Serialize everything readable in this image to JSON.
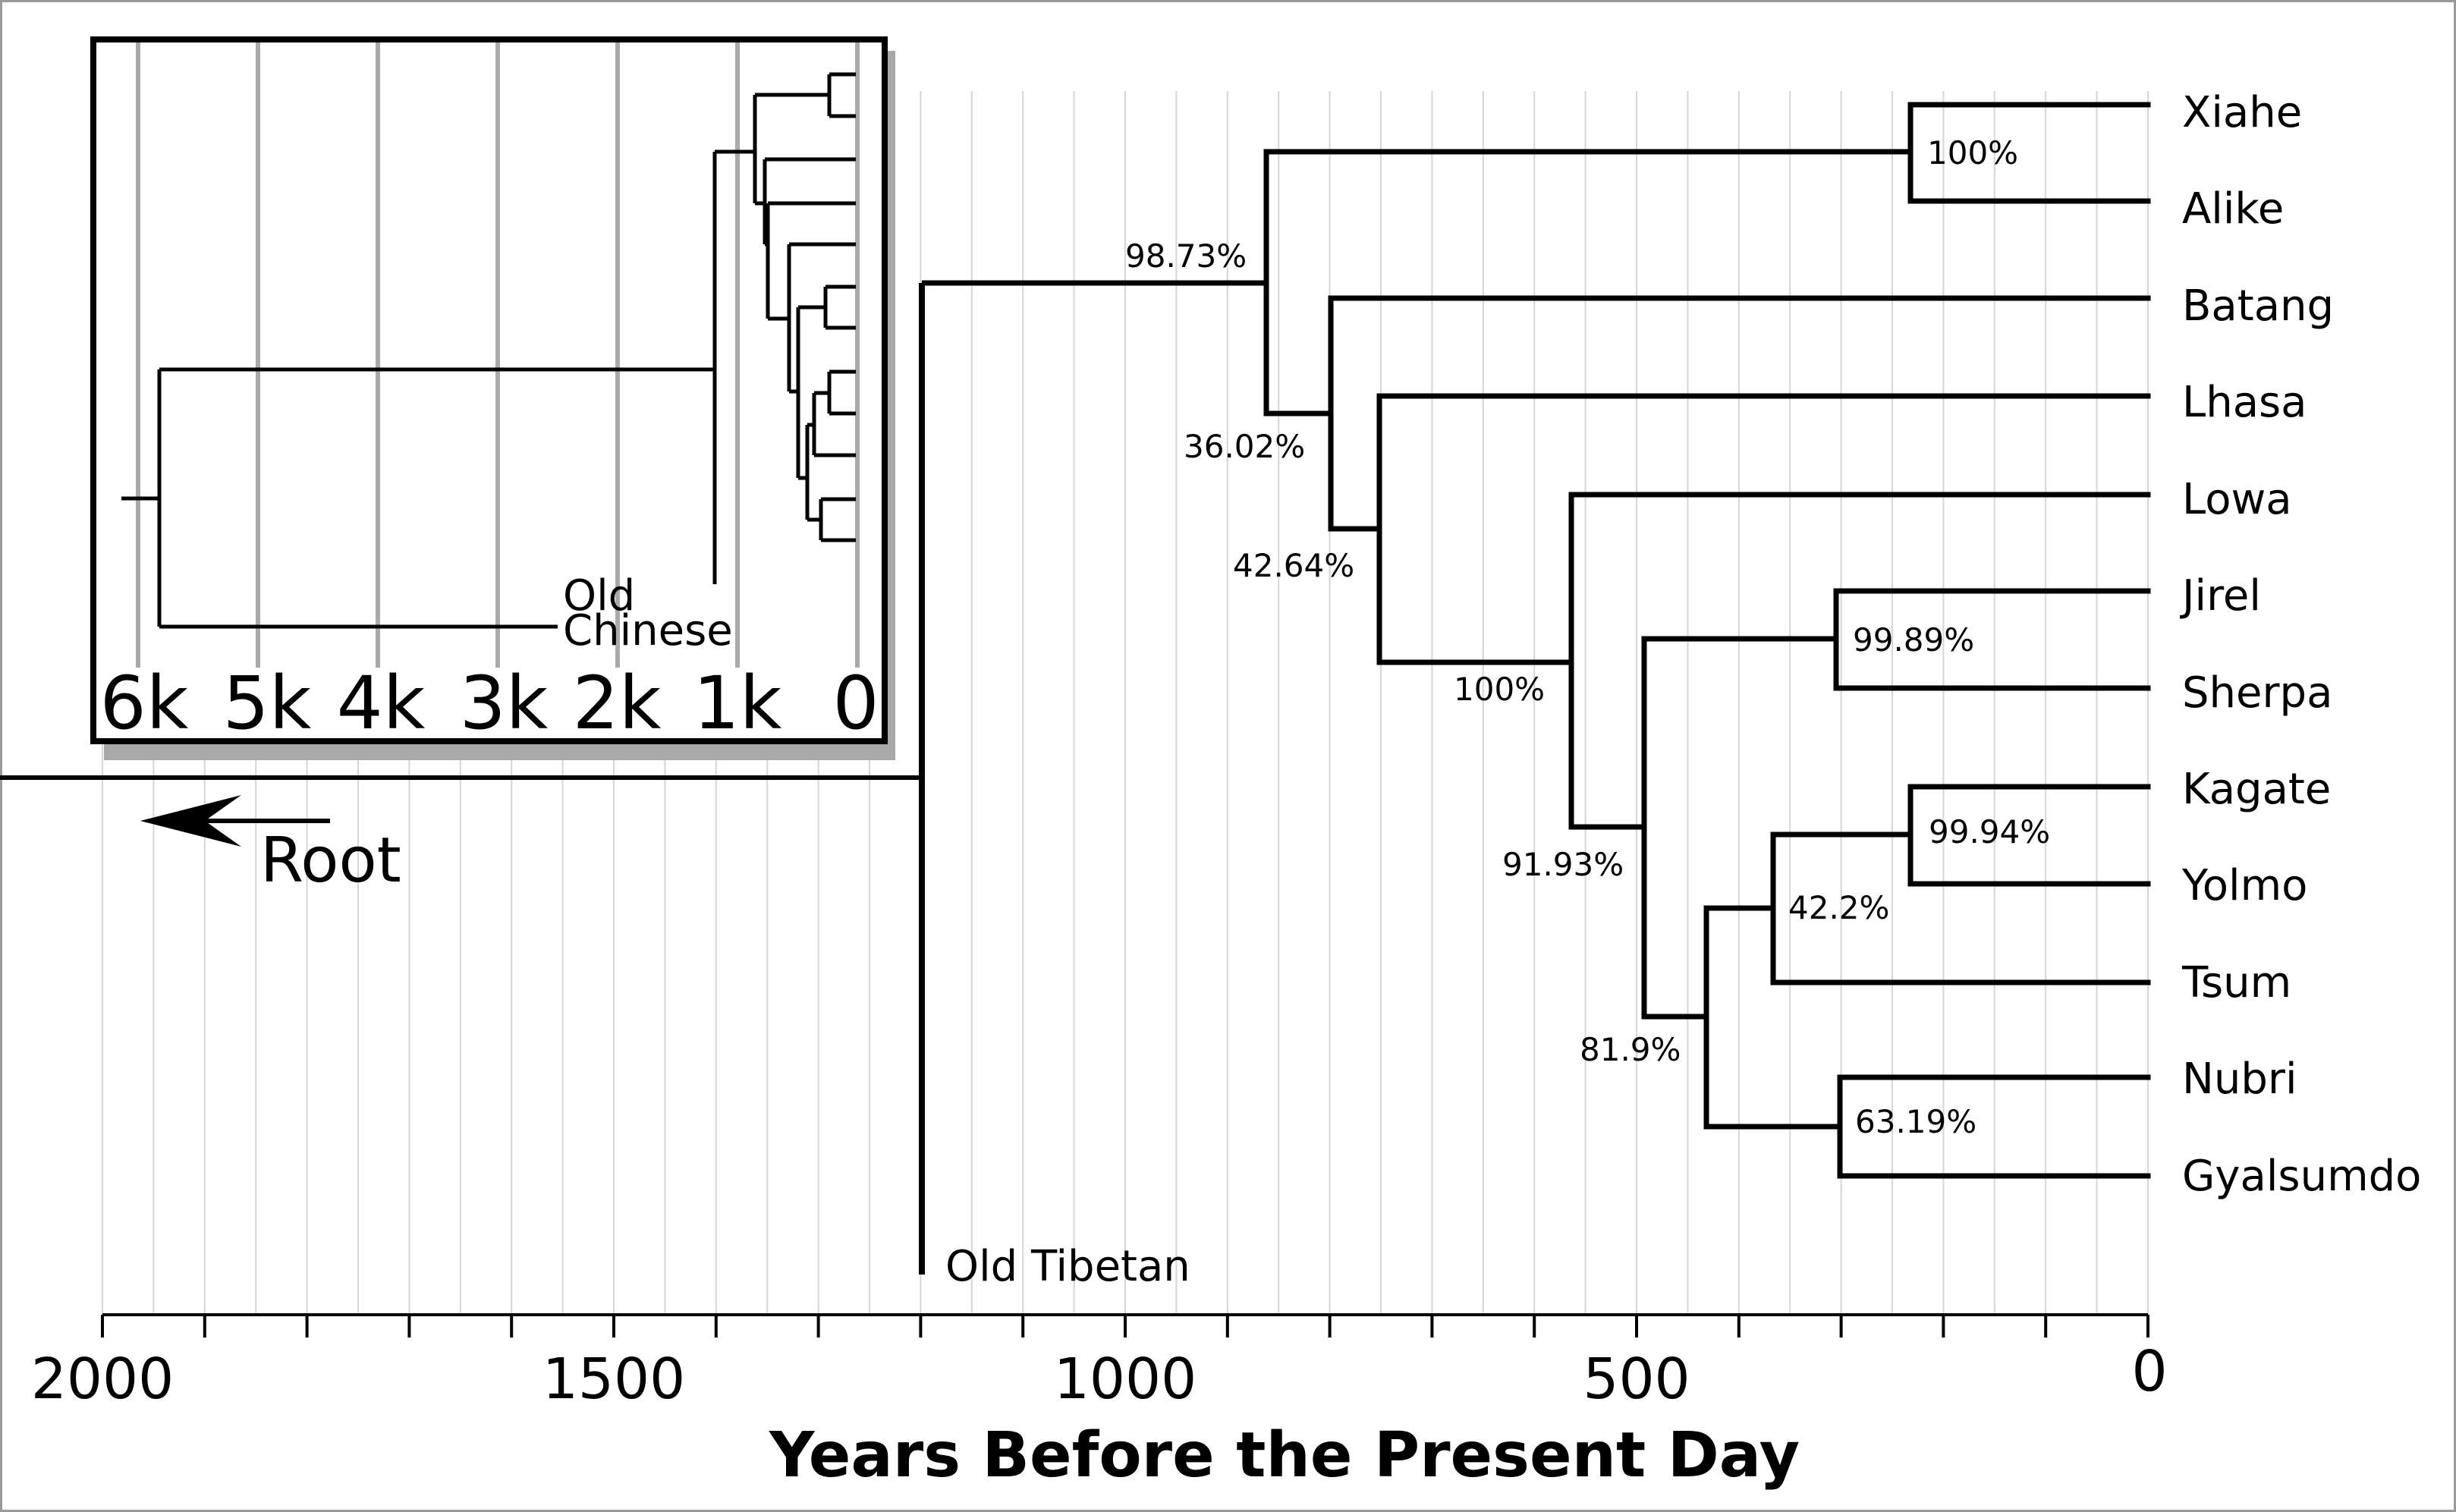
{
  "chart_data": {
    "type": "dendrogram",
    "xlabel": "Years Before the Present Day",
    "xlim": [
      2000,
      0
    ],
    "x_ticks": [
      "2000",
      "1500",
      "1000",
      "500",
      "0"
    ],
    "gridlines": true,
    "root_arrow_label": "Root",
    "outgroup_label": "Old Tibetan",
    "leaves": [
      "Xiahe",
      "Alike",
      "Batang",
      "Lhasa",
      "Lowa",
      "Jirel",
      "Sherpa",
      "Kagate",
      "Yolmo",
      "Tsum",
      "Nubri",
      "Gyalsumdo"
    ],
    "nodes": [
      {
        "age": 1200,
        "children": [
          "Old Tibetan",
          "n_a"
        ]
      },
      {
        "id": "n_a",
        "age": 870,
        "support": "98.73%",
        "children": [
          "n_b",
          "n_c"
        ]
      },
      {
        "id": "n_b",
        "age": 235,
        "support": "100%",
        "children": [
          "Xiahe",
          "Alike"
        ]
      },
      {
        "id": "n_c",
        "age": 800,
        "support": "36.02%",
        "children": [
          "Batang",
          "n_d"
        ]
      },
      {
        "id": "n_d",
        "age": 750,
        "support": "42.64%",
        "children": [
          "Lhasa",
          "n_e"
        ]
      },
      {
        "id": "n_e",
        "age": 570,
        "support": "100%",
        "children": [
          "Lowa",
          "n_f"
        ]
      },
      {
        "id": "n_f",
        "age": 500,
        "support": "91.93%",
        "children": [
          "n_g",
          "n_h"
        ]
      },
      {
        "id": "n_g",
        "age": 305,
        "support": "99.89%",
        "children": [
          "Jirel",
          "Sherpa"
        ]
      },
      {
        "id": "n_h",
        "age": 432,
        "support": "81.9%",
        "children": [
          "n_i",
          "n_k"
        ]
      },
      {
        "id": "n_i",
        "age": 365,
        "support": "42.2%",
        "children": [
          "n_j",
          "Tsum"
        ]
      },
      {
        "id": "n_j",
        "age": 235,
        "support": "99.94%",
        "children": [
          "Kagate",
          "Yolmo"
        ]
      },
      {
        "id": "n_k",
        "age": 302,
        "support": "63.19%",
        "children": [
          "Nubri",
          "Gyalsumdo"
        ]
      }
    ],
    "inset": {
      "x_ticks": [
        "6k",
        "5k",
        "4k",
        "3k",
        "2k",
        "1k",
        "0"
      ],
      "outgroup_label_line1": "Old",
      "outgroup_label_line2": "Chinese",
      "outgroup_age": 5830,
      "tibetan_root_age": 1200
    }
  }
}
